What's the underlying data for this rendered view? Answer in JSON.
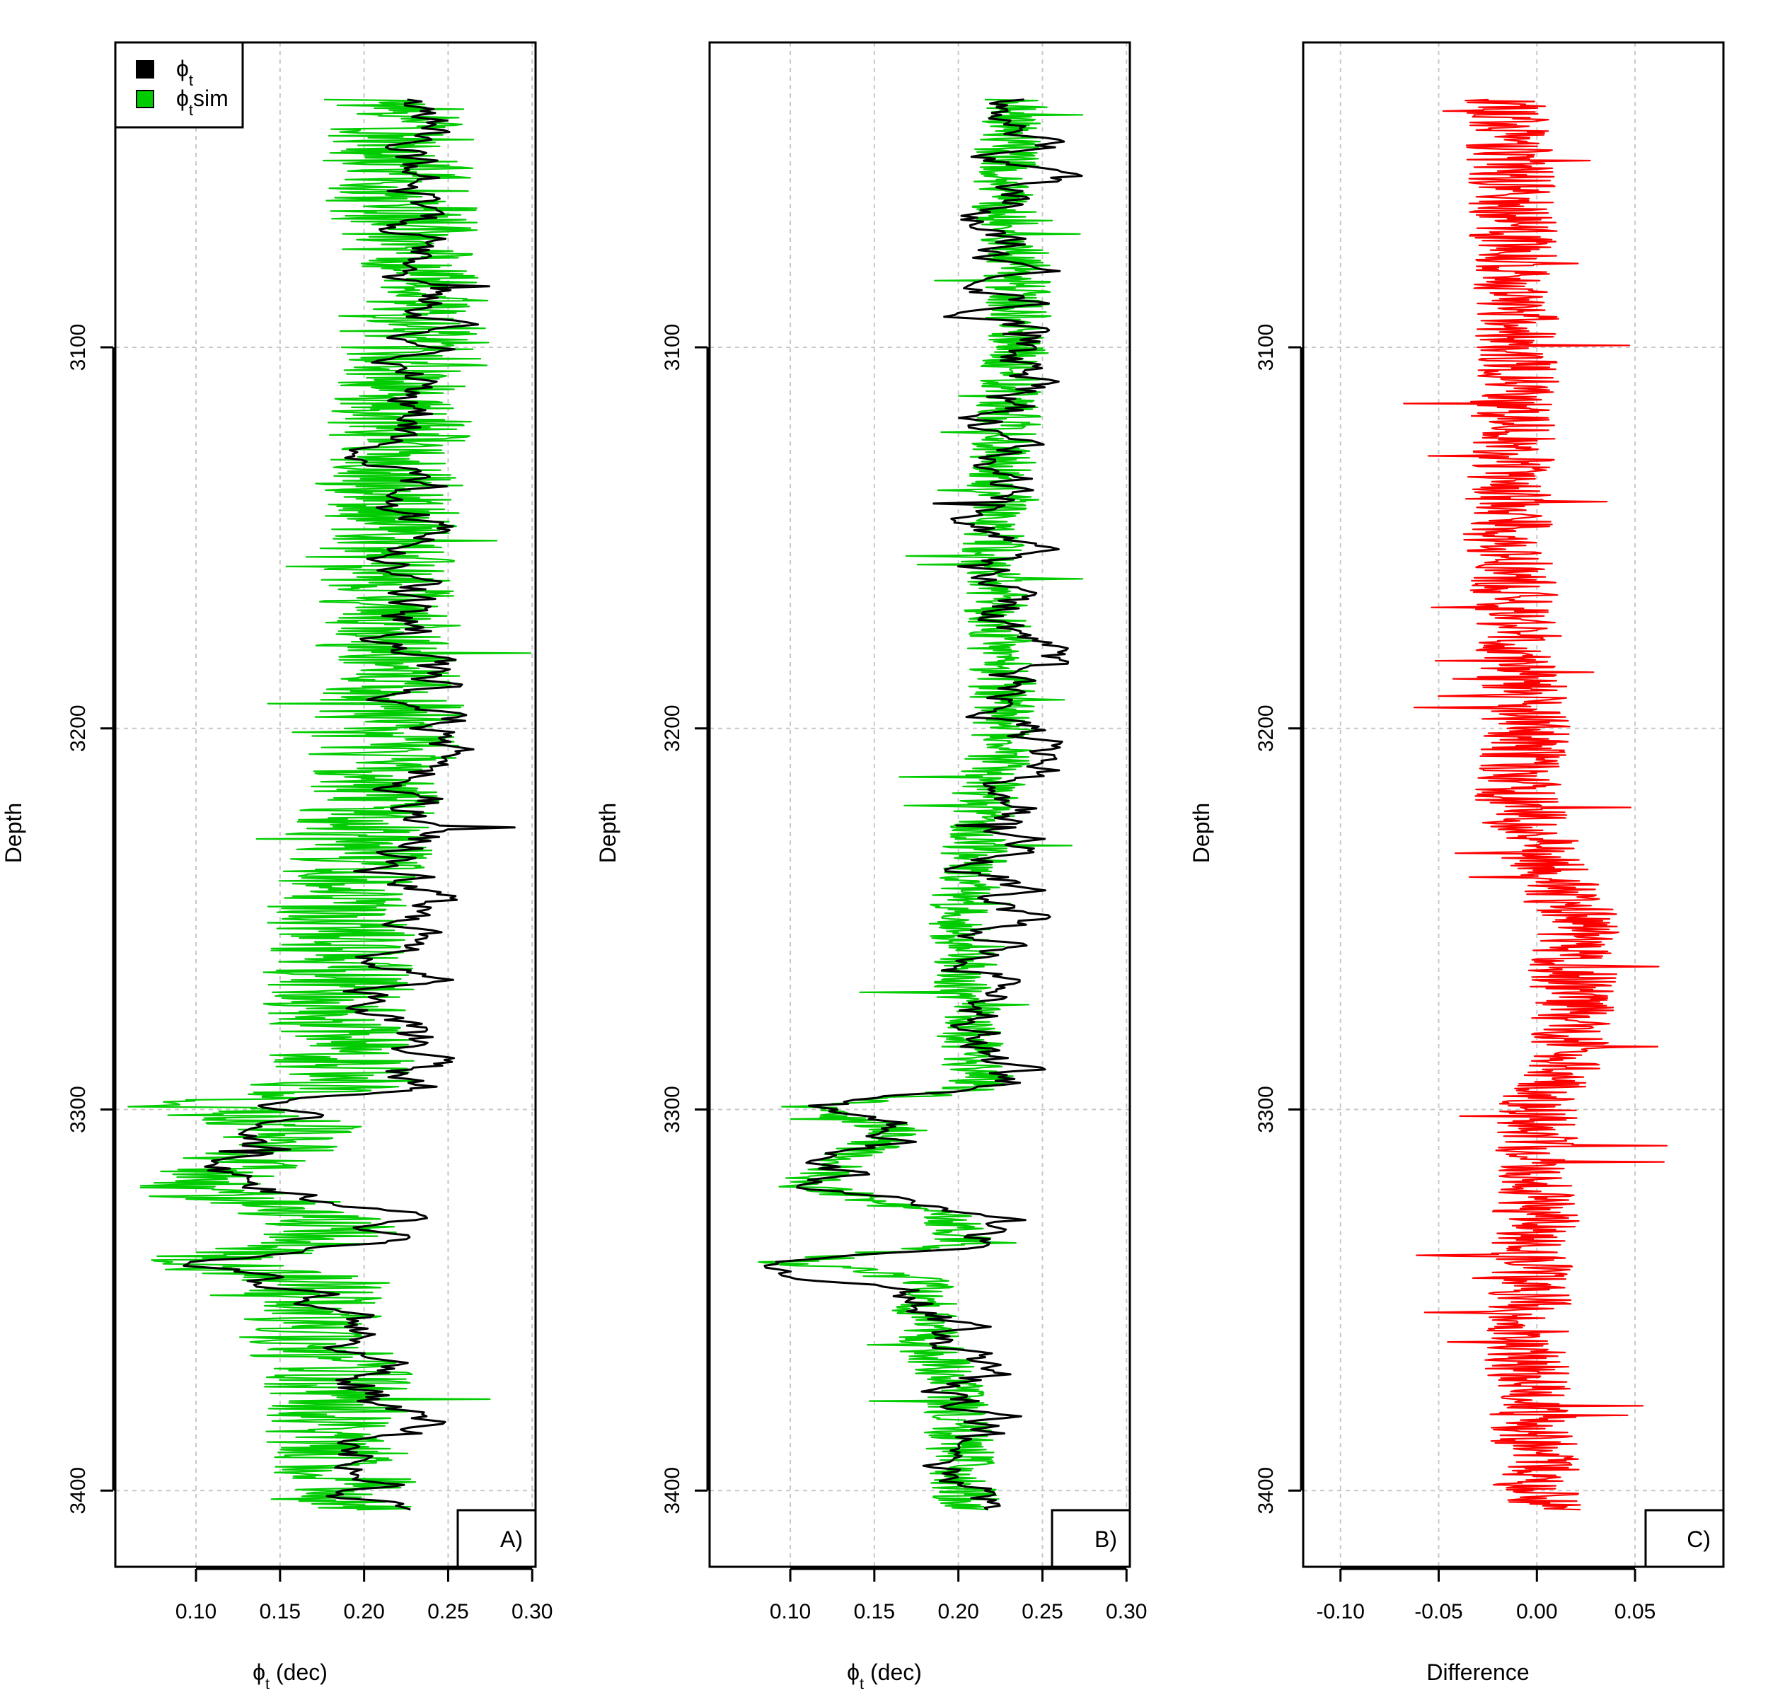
{
  "chart_data": [
    {
      "type": "line",
      "panel_label": "A)",
      "xlabel": "ϕt (dec)",
      "xlabel_main": "ϕ",
      "xlabel_sub": "t",
      "xlabel_rest": " (dec)",
      "ylabel": "Depth",
      "xlim": [
        0.052,
        0.302
      ],
      "ylim": [
        3020,
        3420
      ],
      "x_ticks": [
        0.1,
        0.15,
        0.2,
        0.25,
        0.3
      ],
      "x_tick_labels": [
        "0.10",
        "0.15",
        "0.20",
        "0.25",
        "0.30"
      ],
      "y_ticks": [
        3100,
        3200,
        3300,
        3400
      ],
      "y_tick_labels": [
        "3100",
        "3200",
        "3300",
        "3400"
      ],
      "legend": [
        {
          "main": "ϕ",
          "sub": "t",
          "rest": "",
          "color": "#000000"
        },
        {
          "main": "ϕ",
          "sub": "t",
          "rest": "sim",
          "color": "#00cc00"
        }
      ],
      "series": [
        {
          "name": "ϕt",
          "color": "#000000",
          "profile": [
            [
              3035,
              0.24
            ],
            [
              3050,
              0.235
            ],
            [
              3060,
              0.228
            ],
            [
              3075,
              0.235
            ],
            [
              3100,
              0.24
            ],
            [
              3120,
              0.225
            ],
            [
              3150,
              0.225
            ],
            [
              3190,
              0.228
            ],
            [
              3200,
              0.248
            ],
            [
              3220,
              0.232
            ],
            [
              3250,
              0.225
            ],
            [
              3280,
              0.225
            ],
            [
              3295,
              0.22
            ],
            [
              3299,
              0.12
            ],
            [
              3305,
              0.165
            ],
            [
              3320,
              0.12
            ],
            [
              3328,
              0.215
            ],
            [
              3335,
              0.22
            ],
            [
              3340,
              0.09
            ],
            [
              3350,
              0.185
            ],
            [
              3360,
              0.195
            ],
            [
              3370,
              0.205
            ],
            [
              3385,
              0.218
            ],
            [
              3400,
              0.21
            ],
            [
              3405,
              0.215
            ]
          ]
        },
        {
          "name": "ϕtsim",
          "color": "#00cc00",
          "profile": [
            [
              3035,
              0.22
            ],
            [
              3060,
              0.22
            ],
            [
              3075,
              0.23
            ],
            [
              3100,
              0.23
            ],
            [
              3150,
              0.21
            ],
            [
              3200,
              0.215
            ],
            [
              3250,
              0.185
            ],
            [
              3295,
              0.185
            ],
            [
              3299,
              0.1
            ],
            [
              3305,
              0.165
            ],
            [
              3320,
              0.1
            ],
            [
              3328,
              0.175
            ],
            [
              3335,
              0.18
            ],
            [
              3340,
              0.09
            ],
            [
              3345,
              0.175
            ],
            [
              3360,
              0.17
            ],
            [
              3370,
              0.185
            ],
            [
              3385,
              0.185
            ],
            [
              3405,
              0.19
            ]
          ]
        }
      ]
    },
    {
      "type": "line",
      "panel_label": "B)",
      "xlabel": "ϕt (dec)",
      "xlabel_main": "ϕ",
      "xlabel_sub": "t",
      "xlabel_rest": " (dec)",
      "ylabel": "Depth",
      "xlim": [
        0.052,
        0.302
      ],
      "ylim": [
        3020,
        3420
      ],
      "x_ticks": [
        0.1,
        0.15,
        0.2,
        0.25,
        0.3
      ],
      "x_tick_labels": [
        "0.10",
        "0.15",
        "0.20",
        "0.25",
        "0.30"
      ],
      "y_ticks": [
        3100,
        3200,
        3300,
        3400
      ],
      "y_tick_labels": [
        "3100",
        "3200",
        "3300",
        "3400"
      ],
      "series": [
        {
          "name": "ϕt",
          "color": "#000000",
          "profile": [
            [
              3035,
              0.24
            ],
            [
              3050,
              0.235
            ],
            [
              3060,
              0.228
            ],
            [
              3075,
              0.235
            ],
            [
              3100,
              0.24
            ],
            [
              3120,
              0.225
            ],
            [
              3150,
              0.225
            ],
            [
              3190,
              0.228
            ],
            [
              3200,
              0.248
            ],
            [
              3220,
              0.232
            ],
            [
              3250,
              0.225
            ],
            [
              3280,
              0.225
            ],
            [
              3295,
              0.22
            ],
            [
              3299,
              0.12
            ],
            [
              3305,
              0.165
            ],
            [
              3320,
              0.12
            ],
            [
              3328,
              0.215
            ],
            [
              3335,
              0.22
            ],
            [
              3340,
              0.09
            ],
            [
              3350,
              0.185
            ],
            [
              3360,
              0.195
            ],
            [
              3370,
              0.205
            ],
            [
              3385,
              0.218
            ],
            [
              3400,
              0.21
            ],
            [
              3405,
              0.215
            ]
          ]
        },
        {
          "name": "ϕtsim",
          "color": "#00cc00",
          "profile": [
            [
              3035,
              0.235
            ],
            [
              3060,
              0.225
            ],
            [
              3075,
              0.235
            ],
            [
              3100,
              0.235
            ],
            [
              3150,
              0.22
            ],
            [
              3200,
              0.228
            ],
            [
              3250,
              0.2
            ],
            [
              3295,
              0.21
            ],
            [
              3299,
              0.11
            ],
            [
              3305,
              0.165
            ],
            [
              3320,
              0.11
            ],
            [
              3328,
              0.195
            ],
            [
              3335,
              0.205
            ],
            [
              3340,
              0.1
            ],
            [
              3345,
              0.18
            ],
            [
              3360,
              0.18
            ],
            [
              3370,
              0.195
            ],
            [
              3385,
              0.2
            ],
            [
              3405,
              0.205
            ]
          ]
        }
      ]
    },
    {
      "type": "line",
      "panel_label": "C)",
      "xlabel": "Difference",
      "ylabel": "Depth",
      "xlim": [
        -0.119,
        0.095
      ],
      "ylim": [
        3020,
        3420
      ],
      "x_ticks": [
        -0.1,
        -0.05,
        0.0,
        0.05
      ],
      "x_tick_labels": [
        "-0.10",
        "-0.05",
        "0.00",
        "0.05"
      ],
      "y_ticks": [
        3100,
        3200,
        3300,
        3400
      ],
      "y_tick_labels": [
        "3100",
        "3200",
        "3300",
        "3400"
      ],
      "series": [
        {
          "name": "Difference",
          "color": "#ff0000",
          "profile": [
            [
              3035,
              -0.015
            ],
            [
              3100,
              -0.01
            ],
            [
              3150,
              -0.015
            ],
            [
              3200,
              -0.005
            ],
            [
              3220,
              -0.01
            ],
            [
              3250,
              0.02
            ],
            [
              3290,
              0.015
            ],
            [
              3300,
              0.0
            ],
            [
              3330,
              0.0
            ],
            [
              3360,
              -0.005
            ],
            [
              3400,
              0.0
            ],
            [
              3405,
              0.0
            ]
          ]
        }
      ]
    }
  ]
}
